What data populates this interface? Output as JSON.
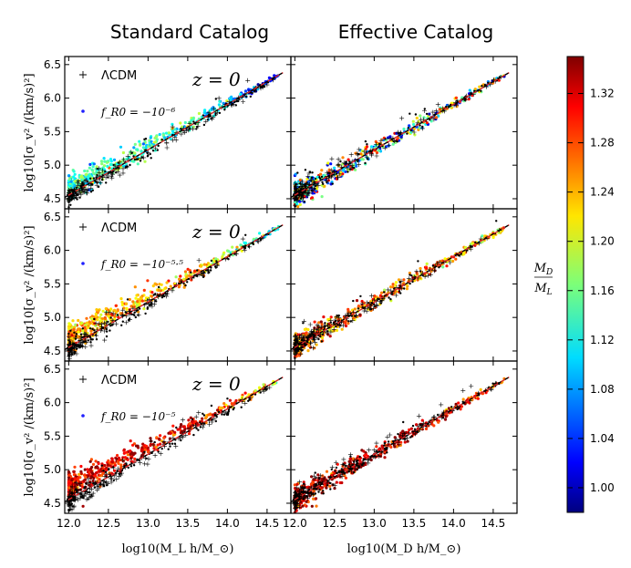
{
  "figure": {
    "column_titles": [
      "Standard Catalog",
      "Effective Catalog"
    ],
    "colorbar_label_num": "M_D",
    "colorbar_label_den": "M_L"
  },
  "chart_data": {
    "type": "scatter",
    "layout": "3 rows x 2 columns grid of scatter panels with shared axes and one colorbar",
    "xlim": [
      11.95,
      14.8
    ],
    "ylim": [
      4.35,
      6.62
    ],
    "xticks": [
      12.0,
      12.5,
      13.0,
      13.5,
      14.0,
      14.5
    ],
    "xtick_labels": [
      "12.0",
      "12.5",
      "13.0",
      "13.5",
      "14.0",
      "14.5"
    ],
    "yticks": [
      4.5,
      5.0,
      5.5,
      6.0,
      6.5
    ],
    "ytick_labels": [
      "4.5",
      "5.0",
      "5.5",
      "6.0",
      "6.5"
    ],
    "xlabels": [
      "log10(M_L h/M_⊙)",
      "log10(M_D h/M_⊙)"
    ],
    "ylabel": "log10[σ_v² /(km/s)²]",
    "fit_line": {
      "style": "dashed",
      "colors": [
        "#000000",
        "#d62728"
      ],
      "x": [
        11.95,
        14.7
      ],
      "y": [
        4.52,
        6.38
      ]
    },
    "colorbar": {
      "range": [
        0.98,
        1.35
      ],
      "ticks": [
        1.0,
        1.04,
        1.08,
        1.12,
        1.16,
        1.2,
        1.24,
        1.28,
        1.32
      ],
      "tick_labels": [
        "1.00",
        "1.04",
        "1.08",
        "1.12",
        "1.16",
        "1.20",
        "1.24",
        "1.28",
        "1.32"
      ],
      "colormap": "jet"
    },
    "rows": [
      {
        "legend": {
          "lcdm": "ΛCDM",
          "fr0": "f_R0 = −10⁻⁶"
        },
        "redshift_label": "z = 0",
        "standard": {
          "offset": 0.1,
          "ratio": 1.14
        },
        "effective": {
          "offset": 0.0,
          "ratio": 1.14
        }
      },
      {
        "legend": {
          "lcdm": "ΛCDM",
          "fr0": "f_R0 = −10⁻⁵·⁵"
        },
        "redshift_label": "z = 0",
        "standard": {
          "offset": 0.15,
          "ratio": 1.24
        },
        "effective": {
          "offset": 0.0,
          "ratio": 1.26
        }
      },
      {
        "legend": {
          "lcdm": "ΛCDM",
          "fr0": "f_R0 = −10⁻⁵"
        },
        "redshift_label": "z = 0",
        "standard": {
          "offset": 0.2,
          "ratio": 1.31
        },
        "effective": {
          "offset": 0.0,
          "ratio": 1.32
        }
      }
    ]
  }
}
